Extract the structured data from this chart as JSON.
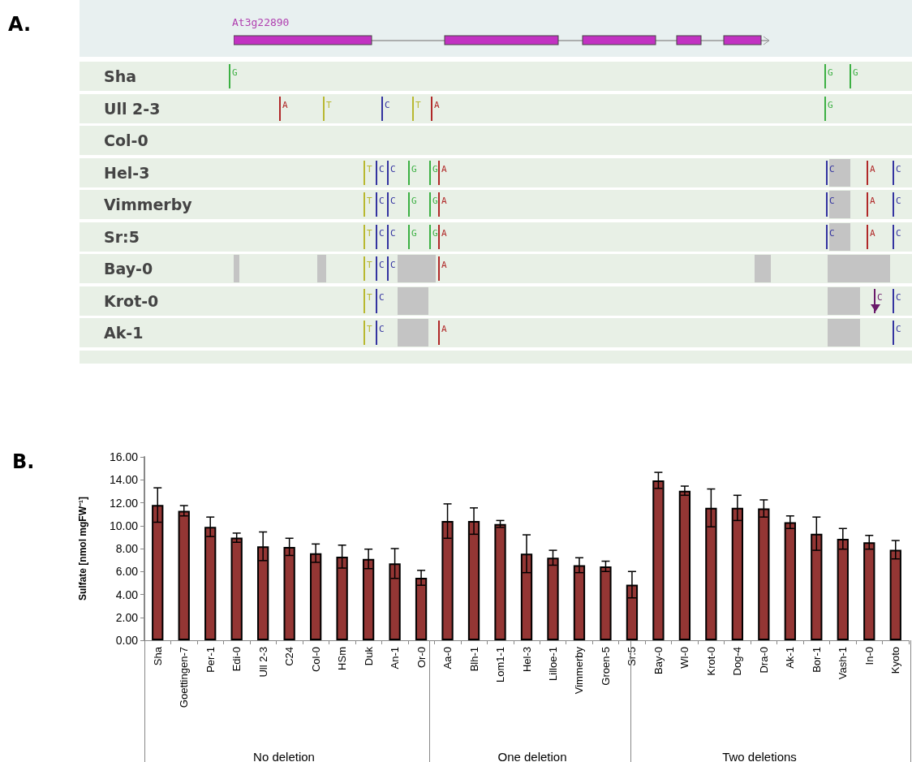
{
  "chart_data": [
    {
      "type": "other",
      "title": "A.",
      "subtitle": "At3g22890",
      "categories": [
        "Sha",
        "Ull 2-3",
        "Col-0",
        "Hel-3",
        "Vimmerby",
        "Sr:5",
        "Bay-0",
        "Krot-0",
        "Ak-1"
      ],
      "annotations": [
        {
          "text": "G",
          "y": "Sha"
        },
        {
          "text": "G",
          "y": "Sha"
        },
        {
          "text": "G",
          "y": "Sha"
        },
        {
          "text": "A",
          "y": "Ull 2-3"
        },
        {
          "text": "T",
          "y": "Ull 2-3"
        },
        {
          "text": "C",
          "y": "Ull 2-3"
        },
        {
          "text": "T",
          "y": "Ull 2-3"
        },
        {
          "text": "A",
          "y": "Ull 2-3"
        },
        {
          "text": "G",
          "y": "Ull 2-3"
        },
        {
          "text": "T",
          "y": "Hel-3"
        },
        {
          "text": "C",
          "y": "Hel-3"
        },
        {
          "text": "C",
          "y": "Hel-3"
        },
        {
          "text": "G",
          "y": "Hel-3"
        },
        {
          "text": "G",
          "y": "Hel-3"
        },
        {
          "text": "A",
          "y": "Hel-3"
        },
        {
          "text": "C",
          "y": "Hel-3"
        },
        {
          "text": "A",
          "y": "Hel-3"
        },
        {
          "text": "C",
          "y": "Hel-3"
        },
        {
          "text": "T",
          "y": "Vimmerby"
        },
        {
          "text": "C",
          "y": "Vimmerby"
        },
        {
          "text": "C",
          "y": "Vimmerby"
        },
        {
          "text": "G",
          "y": "Vimmerby"
        },
        {
          "text": "G",
          "y": "Vimmerby"
        },
        {
          "text": "A",
          "y": "Vimmerby"
        },
        {
          "text": "C",
          "y": "Vimmerby"
        },
        {
          "text": "A",
          "y": "Vimmerby"
        },
        {
          "text": "C",
          "y": "Vimmerby"
        },
        {
          "text": "T",
          "y": "Sr:5"
        },
        {
          "text": "C",
          "y": "Sr:5"
        },
        {
          "text": "C",
          "y": "Sr:5"
        },
        {
          "text": "G",
          "y": "Sr:5"
        },
        {
          "text": "G",
          "y": "Sr:5"
        },
        {
          "text": "A",
          "y": "Sr:5"
        },
        {
          "text": "C",
          "y": "Sr:5"
        },
        {
          "text": "A",
          "y": "Sr:5"
        },
        {
          "text": "C",
          "y": "Sr:5"
        },
        {
          "text": "T",
          "y": "Bay-0"
        },
        {
          "text": "C",
          "y": "Bay-0"
        },
        {
          "text": "C",
          "y": "Bay-0"
        },
        {
          "text": "A",
          "y": "Bay-0"
        },
        {
          "text": "T",
          "y": "Krot-0"
        },
        {
          "text": "C",
          "y": "Krot-0"
        },
        {
          "text": "C",
          "y": "Krot-0"
        },
        {
          "text": "C",
          "y": "Krot-0"
        },
        {
          "text": "T",
          "y": "Ak-1"
        },
        {
          "text": "C",
          "y": "Ak-1"
        },
        {
          "text": "A",
          "y": "Ak-1"
        },
        {
          "text": "C",
          "y": "Ak-1"
        }
      ]
    },
    {
      "type": "bar",
      "title": "B.",
      "ylabel": "Sulfate [nmol mgFW⁻¹]",
      "categories": [
        "Sha",
        "Goettingen-7",
        "Per-1",
        "Edi-0",
        "Ull 2-3",
        "C24",
        "Col-0",
        "HSm",
        "Duk",
        "An-1",
        "Or-0",
        "Aa-0",
        "Blh-1",
        "Lom1-1",
        "Hel-3",
        "Lilloe-1",
        "Vimmerby",
        "Groen-5",
        "Sr:5",
        "Bay-0",
        "Wl-0",
        "Krot-0",
        "Dog-4",
        "Dra-0",
        "Ak-1",
        "Bor-1",
        "Vash-1",
        "In-0",
        "Kyoto"
      ],
      "values": [
        11.8,
        11.3,
        9.9,
        8.95,
        8.2,
        8.15,
        7.6,
        7.3,
        7.1,
        6.7,
        5.45,
        10.4,
        10.4,
        10.15,
        7.55,
        7.2,
        6.55,
        6.45,
        4.85,
        13.95,
        13.05,
        11.55,
        11.55,
        11.5,
        10.3,
        9.3,
        8.85,
        8.55,
        7.9
      ],
      "errors": [
        1.5,
        0.45,
        0.85,
        0.4,
        1.25,
        0.75,
        0.8,
        1.0,
        0.85,
        1.3,
        0.65,
        1.5,
        1.15,
        0.3,
        1.65,
        0.65,
        0.65,
        0.45,
        1.15,
        0.7,
        0.4,
        1.65,
        1.1,
        0.75,
        0.55,
        1.45,
        0.9,
        0.6,
        0.8
      ],
      "color": "#943634",
      "ylim": [
        0,
        16
      ],
      "yticks": [
        {
          "value": 0,
          "label": "0.00"
        },
        {
          "value": 2,
          "label": "2.00"
        },
        {
          "value": 4,
          "label": "4.00"
        },
        {
          "value": 6,
          "label": "6.00"
        },
        {
          "value": 8,
          "label": "8.00"
        },
        {
          "value": 10,
          "label": "10.00"
        },
        {
          "value": 12,
          "label": "12.00"
        },
        {
          "value": 14,
          "label": "14.00"
        },
        {
          "value": 16,
          "label": "16.00"
        }
      ],
      "annotations": [
        "No deletion",
        "One deletion",
        "Two deletions"
      ]
    }
  ]
}
